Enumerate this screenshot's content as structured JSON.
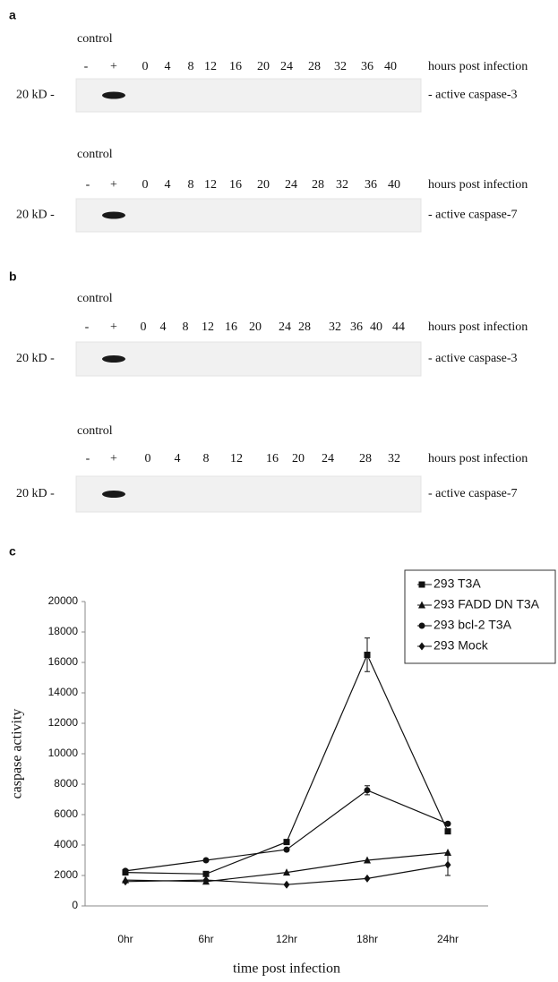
{
  "blots": [
    {
      "panel_label": "a",
      "control_label": "control",
      "lanes": [
        "-",
        "+",
        "0",
        "4",
        "8",
        "12",
        "16",
        "20",
        "24",
        "28",
        "32",
        "36",
        "40"
      ],
      "lanes_caption": "hours post infection",
      "size_marker": "20 kD -",
      "band_label": "- active caspase-3"
    },
    {
      "control_label": "control",
      "lanes": [
        "-",
        "+",
        "0",
        "4",
        "8",
        "12",
        "16",
        "20",
        "24",
        "28",
        "32",
        "36",
        "40"
      ],
      "lanes_caption": "hours post infection",
      "size_marker": "20 kD -",
      "band_label": "- active caspase-7"
    },
    {
      "panel_label": "b",
      "control_label": "control",
      "lanes": [
        "-",
        "+",
        "0",
        "4",
        "8",
        "12",
        "16",
        "20",
        "24",
        "28",
        "32",
        "36",
        "40",
        "44"
      ],
      "lanes_caption": "hours post infection",
      "size_marker": "20 kD -",
      "band_label": "- active caspase-3"
    },
    {
      "control_label": "control",
      "lanes": [
        "-",
        "+",
        "0",
        "4",
        "8",
        "12",
        "16",
        "20",
        "24",
        "28",
        "32"
      ],
      "lanes_caption": "hours post infection",
      "size_marker": "20 kD -",
      "band_label": "- active caspase-7"
    }
  ],
  "chart_panel_label": "c",
  "chart_data": {
    "type": "line",
    "x_label": "time post infection",
    "y_label": "caspase activity",
    "categories": [
      "0hr",
      "6hr",
      "12hr",
      "18hr",
      "24hr"
    ],
    "ylim": [
      0,
      20000
    ],
    "yticks": [
      0,
      2000,
      4000,
      6000,
      8000,
      10000,
      12000,
      14000,
      16000,
      18000,
      20000
    ],
    "legend": "upper right",
    "series": [
      {
        "name": "293 T3A",
        "color": "#111111",
        "marker": "square",
        "values": [
          2200,
          2100,
          4200,
          16500,
          4900
        ],
        "errors": [
          null,
          null,
          null,
          1100,
          null
        ]
      },
      {
        "name": "293 FADD DN T3A",
        "color": "#111111",
        "marker": "triangle",
        "values": [
          1700,
          1600,
          2200,
          3000,
          3500
        ],
        "errors": [
          null,
          null,
          null,
          null,
          null
        ]
      },
      {
        "name": "293 bcl-2 T3A",
        "color": "#111111",
        "marker": "circle",
        "values": [
          2300,
          3000,
          3700,
          7600,
          5400
        ],
        "errors": [
          null,
          null,
          null,
          300,
          null
        ]
      },
      {
        "name": "293 Mock",
        "color": "#111111",
        "marker": "diamond",
        "values": [
          1600,
          1700,
          1400,
          1800,
          2700
        ],
        "errors": [
          null,
          null,
          null,
          null,
          700
        ]
      }
    ]
  }
}
